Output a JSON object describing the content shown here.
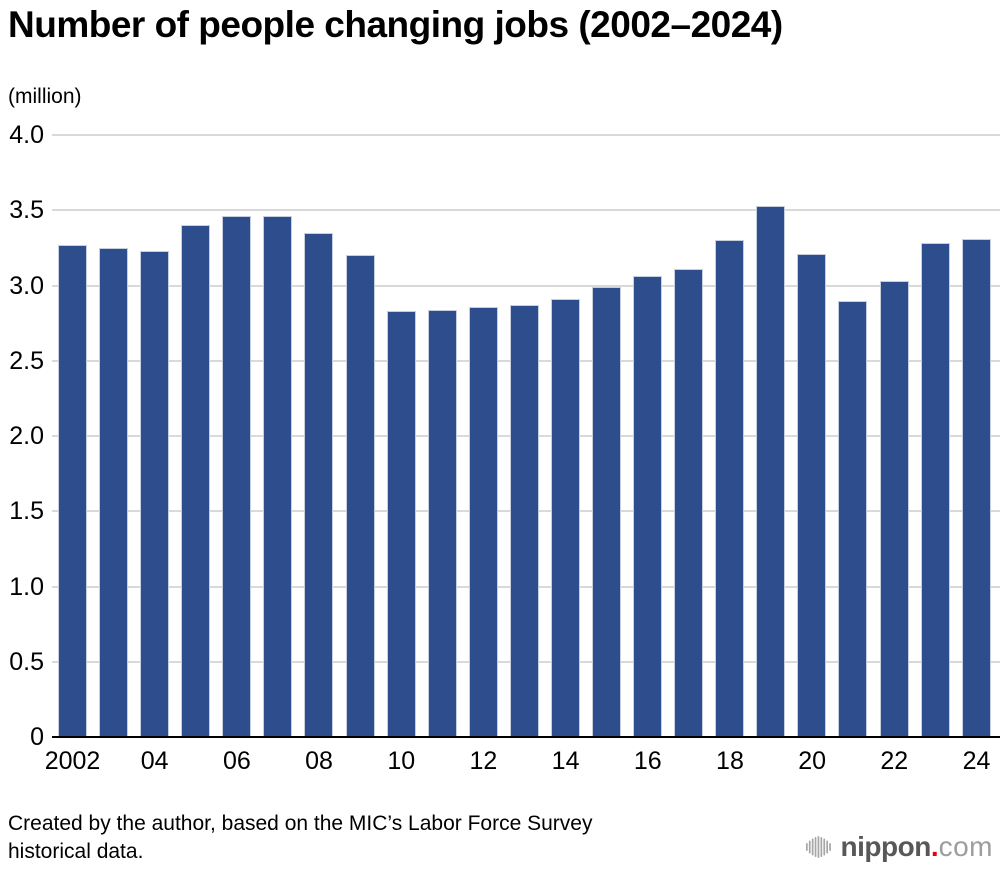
{
  "title": "Number of people changing jobs (2002–2024)",
  "unit_label": "(million)",
  "chart_data": {
    "type": "bar",
    "title": "Number of people changing jobs (2002–2024)",
    "xlabel": "",
    "ylabel": "(million)",
    "ylim": [
      0,
      4.0
    ],
    "grid": true,
    "legend_position": "none",
    "bar_color": "#2e4d8c",
    "bar_border_color": "#c6cedf",
    "gridline_color": "#d9d9d9",
    "axis_line_color": "#000000",
    "categories": [
      2002,
      2003,
      2004,
      2005,
      2006,
      2007,
      2008,
      2009,
      2010,
      2011,
      2012,
      2013,
      2014,
      2015,
      2016,
      2017,
      2018,
      2019,
      2020,
      2021,
      2022,
      2023,
      2024
    ],
    "values": [
      3.27,
      3.25,
      3.23,
      3.4,
      3.46,
      3.46,
      3.35,
      3.2,
      2.83,
      2.84,
      2.86,
      2.87,
      2.91,
      2.99,
      3.06,
      3.11,
      3.3,
      3.53,
      3.21,
      2.9,
      3.03,
      3.28,
      3.31
    ],
    "y_ticks": [
      {
        "label": "4.0",
        "value": 4.0
      },
      {
        "label": "3.5",
        "value": 3.5
      },
      {
        "label": "3.0",
        "value": 3.0
      },
      {
        "label": "2.5",
        "value": 2.5
      },
      {
        "label": "2.0",
        "value": 2.0
      },
      {
        "label": "1.5",
        "value": 1.5
      },
      {
        "label": "1.0",
        "value": 1.0
      },
      {
        "label": "0.5",
        "value": 0.5
      },
      {
        "label": "0",
        "value": 0
      }
    ],
    "x_ticks": [
      {
        "label": "2002",
        "bar_index": 0
      },
      {
        "label": "04",
        "bar_index": 2
      },
      {
        "label": "06",
        "bar_index": 4
      },
      {
        "label": "08",
        "bar_index": 6
      },
      {
        "label": "10",
        "bar_index": 8
      },
      {
        "label": "12",
        "bar_index": 10
      },
      {
        "label": "14",
        "bar_index": 12
      },
      {
        "label": "16",
        "bar_index": 14
      },
      {
        "label": "18",
        "bar_index": 16
      },
      {
        "label": "20",
        "bar_index": 18
      },
      {
        "label": "22",
        "bar_index": 20
      },
      {
        "label": "24",
        "bar_index": 22
      }
    ]
  },
  "footer": {
    "source_line1": "Created by the author, based on the MIC’s Labor Force Survey",
    "source_line2": "historical data.",
    "logo": {
      "name": "nippon",
      "dot": ".",
      "tld": "com",
      "name_color": "#595757",
      "dot_color": "#e60012",
      "tld_color": "#9d9d9d",
      "icon_color": "#a6a6a6"
    }
  }
}
